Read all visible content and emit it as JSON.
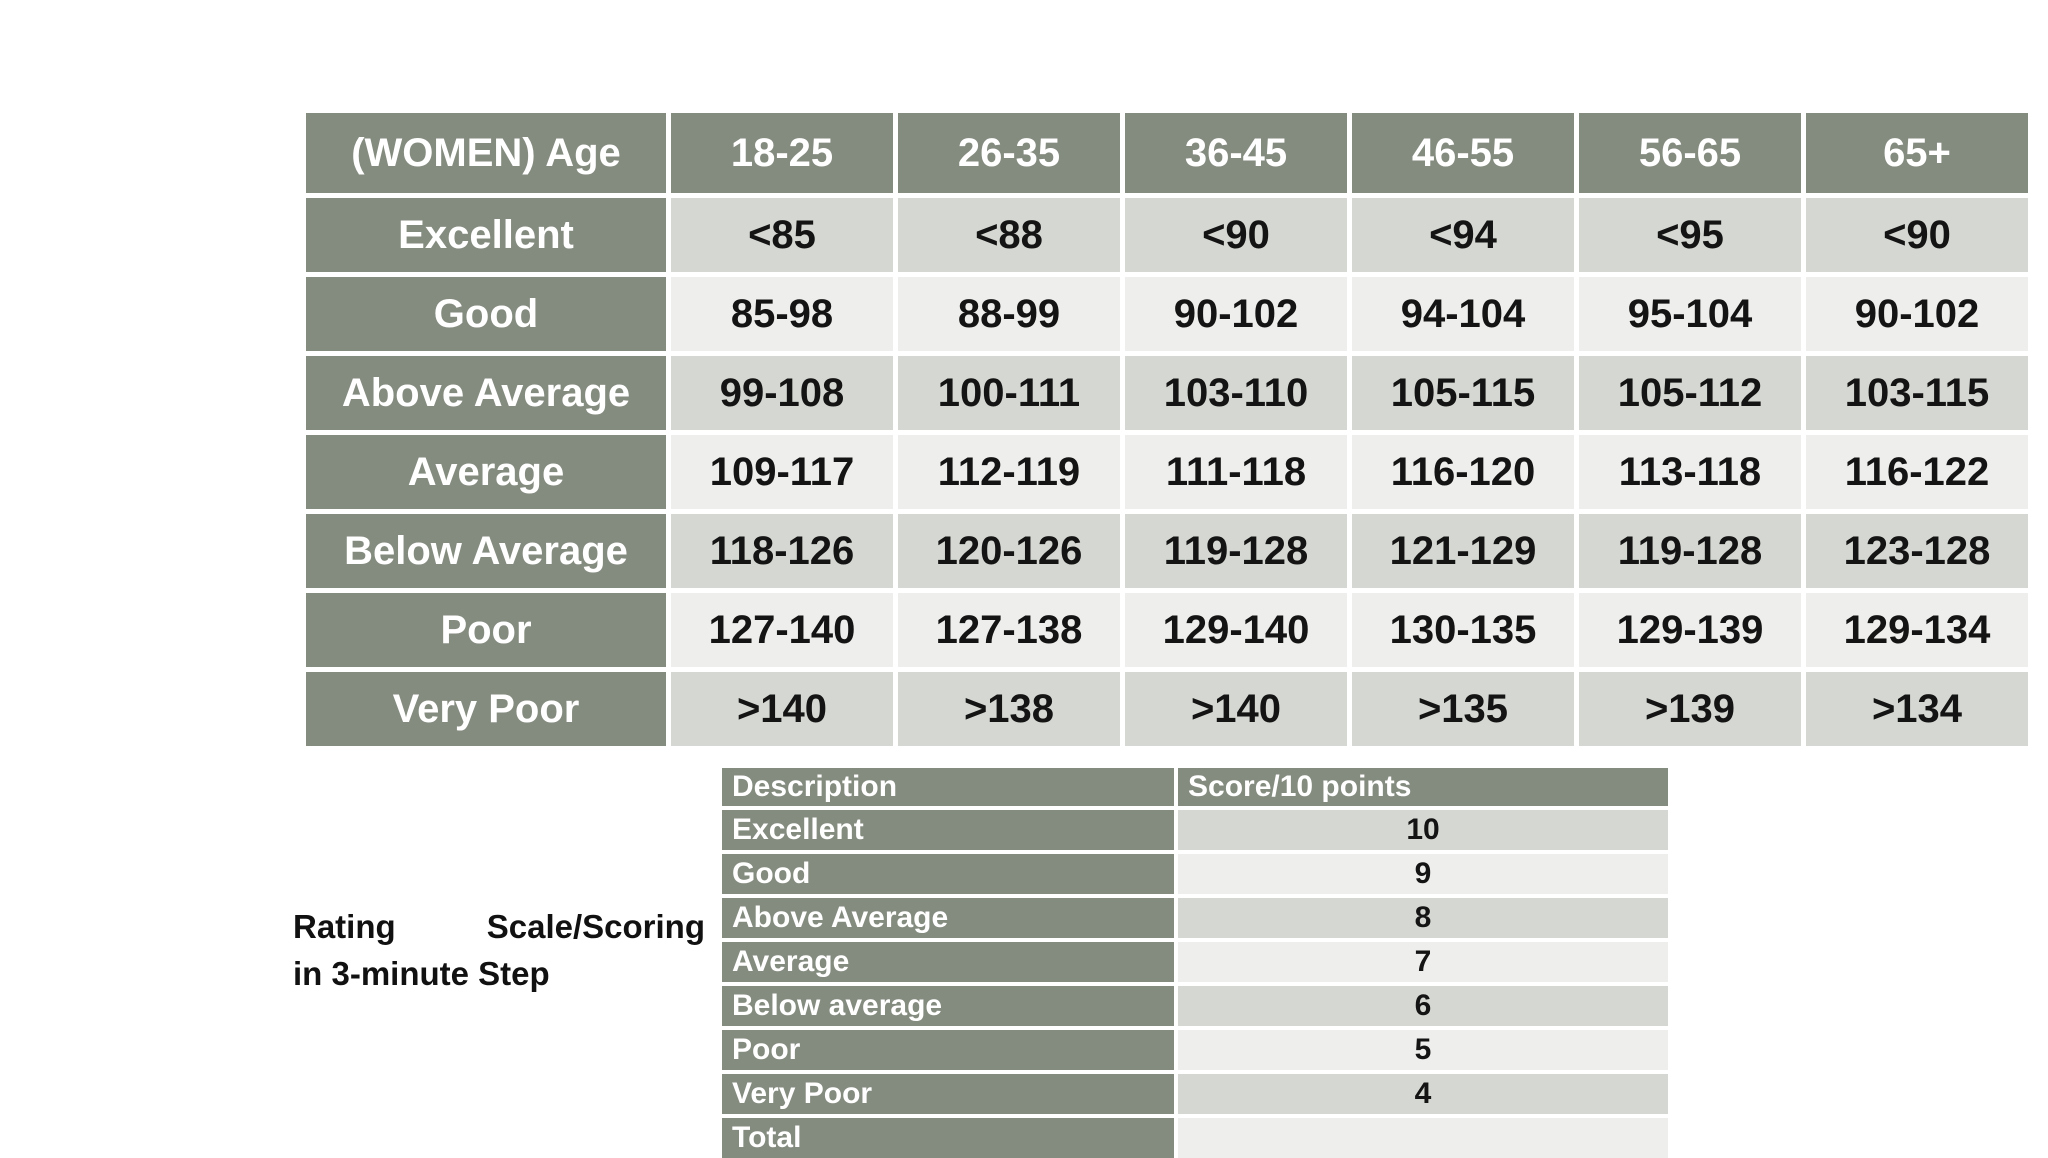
{
  "colors": {
    "header_green": "#848b7f",
    "cell_gray": "#d5d8d2",
    "cell_light": "#eeefec",
    "grid_line": "#ffffff",
    "header_text": "#ffffff",
    "data_text": "#141414",
    "page_background": "#ffffff"
  },
  "caption": {
    "line1": [
      "Rating",
      "Scale/Scoring"
    ],
    "line2": "in 3-minute Step"
  },
  "main_table": {
    "header": [
      "(WOMEN) Age",
      "18-25",
      "26-35",
      "36-45",
      "46-55",
      "56-65",
      "65+"
    ],
    "rows": [
      {
        "label": "Excellent",
        "values": [
          "<85",
          "<88",
          "<90",
          "<94",
          "<95",
          "<90"
        ]
      },
      {
        "label": "Good",
        "values": [
          "85-98",
          "88-99",
          "90-102",
          "94-104",
          "95-104",
          "90-102"
        ]
      },
      {
        "label": "Above Average",
        "values": [
          "99-108",
          "100-111",
          "103-110",
          "105-115",
          "105-112",
          "103-115"
        ]
      },
      {
        "label": "Average",
        "values": [
          "109-117",
          "112-119",
          "111-118",
          "116-120",
          "113-118",
          "116-122"
        ]
      },
      {
        "label": "Below Average",
        "values": [
          "118-126",
          "120-126",
          "119-128",
          "121-129",
          "119-128",
          "123-128"
        ]
      },
      {
        "label": "Poor",
        "values": [
          "127-140",
          "127-138",
          "129-140",
          "130-135",
          "129-139",
          "129-134"
        ]
      },
      {
        "label": "Very Poor",
        "values": [
          ">140",
          ">138",
          ">140",
          ">135",
          ">139",
          ">134"
        ]
      }
    ]
  },
  "score_table": {
    "header": [
      "Description",
      "Score/10 points"
    ],
    "rows": [
      {
        "label": "Excellent",
        "score": "10"
      },
      {
        "label": "Good",
        "score": "9"
      },
      {
        "label": "Above Average",
        "score": "8"
      },
      {
        "label": "Average",
        "score": "7"
      },
      {
        "label": "Below average",
        "score": "6"
      },
      {
        "label": "Poor",
        "score": "5"
      },
      {
        "label": "Very Poor",
        "score": "4"
      },
      {
        "label": "Total",
        "score": ""
      }
    ]
  }
}
